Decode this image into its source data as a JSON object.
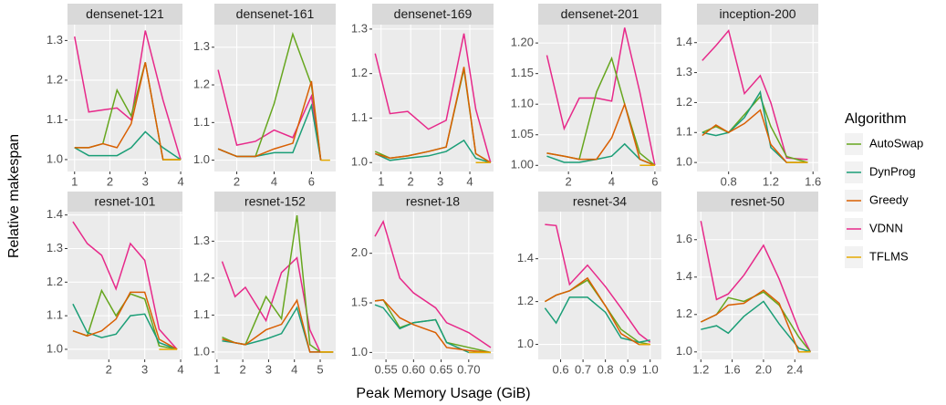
{
  "y_label": "Relative makespan",
  "x_label": "Peak Memory Usage (GiB)",
  "legend": {
    "title": "Algorithm",
    "series": [
      {
        "name": "AutoSwap",
        "color": "#66a61e"
      },
      {
        "name": "DynProg",
        "color": "#1b9e77"
      },
      {
        "name": "Greedy",
        "color": "#d95f02"
      },
      {
        "name": "VDNN",
        "color": "#e7298a"
      },
      {
        "name": "TFLMS",
        "color": "#e6ab02"
      }
    ]
  },
  "chart_data": [
    {
      "type": "line",
      "title": "densenet-121",
      "x": [
        1,
        1.4,
        1.8,
        2.2,
        2.6,
        3.0,
        3.5,
        4.0
      ],
      "xlim": [
        0.8,
        4.05
      ],
      "xticks": [
        1,
        2,
        3,
        4
      ],
      "ylim": [
        0.97,
        1.34
      ],
      "yticks": [
        {
          "value": 1,
          "label": "1.0"
        },
        1.1,
        1.2,
        1.3
      ],
      "series": [
        {
          "values": [
            1.03,
            1.03,
            1.04,
            1.175,
            1.11,
            1.245,
            1.0,
            1.0
          ]
        },
        {
          "values": [
            1.03,
            1.01,
            1.01,
            1.01,
            1.03,
            1.07,
            1.03,
            1.0
          ]
        },
        {
          "values": [
            1.03,
            1.03,
            1.04,
            1.03,
            1.09,
            1.245,
            1.0,
            1.0
          ]
        },
        {
          "values": [
            1.31,
            1.12,
            1.125,
            1.13,
            1.1,
            1.325,
            1.15,
            1.0
          ]
        },
        {
          "values": [
            null,
            null,
            null,
            null,
            null,
            null,
            1.0,
            1.0
          ]
        }
      ]
    },
    {
      "type": "line",
      "title": "densenet-161",
      "x": [
        1,
        2,
        3,
        4,
        5,
        6,
        6.5,
        7
      ],
      "xlim": [
        0.8,
        7.3
      ],
      "xticks": [
        2,
        4,
        6
      ],
      "ylim": [
        0.97,
        1.36
      ],
      "yticks": [
        {
          "value": 1,
          "label": "1.0"
        },
        1.1,
        1.2,
        1.3
      ],
      "series": [
        {
          "values": [
            1.03,
            1.01,
            1.01,
            1.15,
            1.335,
            1.2,
            1.0,
            null
          ]
        },
        {
          "values": [
            1.03,
            1.01,
            1.01,
            1.02,
            1.02,
            1.145,
            1.0,
            null
          ]
        },
        {
          "values": [
            1.03,
            1.01,
            1.01,
            1.03,
            1.045,
            1.21,
            1.0,
            null
          ]
        },
        {
          "values": [
            1.24,
            1.04,
            1.05,
            1.08,
            1.06,
            1.17,
            1.0,
            null
          ]
        },
        {
          "values": [
            null,
            null,
            null,
            null,
            null,
            null,
            1.0,
            1.0
          ]
        }
      ]
    },
    {
      "type": "line",
      "title": "densenet-169",
      "x": [
        0.8,
        1.3,
        1.9,
        2.6,
        3.2,
        3.8,
        4.2,
        4.7
      ],
      "xlim": [
        0.7,
        4.8
      ],
      "xticks": [
        1,
        2,
        3,
        4
      ],
      "ylim": [
        0.98,
        1.31
      ],
      "yticks": [
        {
          "value": 1,
          "label": "1.0"
        },
        1.1,
        1.2,
        1.3
      ],
      "series": [
        {
          "values": [
            1.025,
            1.01,
            1.015,
            1.025,
            1.035,
            1.21,
            1.02,
            1.0
          ]
        },
        {
          "values": [
            1.02,
            1.005,
            1.01,
            1.015,
            1.025,
            1.05,
            1.01,
            1.0
          ]
        },
        {
          "values": [
            1.02,
            1.01,
            1.015,
            1.025,
            1.035,
            1.215,
            1.02,
            1.0
          ]
        },
        {
          "values": [
            1.245,
            1.11,
            1.115,
            1.075,
            1.095,
            1.29,
            1.12,
            1.0
          ]
        },
        {
          "values": [
            null,
            null,
            null,
            null,
            null,
            null,
            1.0,
            1.0
          ]
        }
      ]
    },
    {
      "type": "line",
      "title": "densenet-201",
      "x": [
        1,
        1.8,
        2.5,
        3.3,
        4,
        4.6,
        5.3,
        6
      ],
      "xlim": [
        0.6,
        6.3
      ],
      "xticks": [
        2,
        4,
        6
      ],
      "ylim": [
        0.99,
        1.23
      ],
      "yticks": [
        {
          "value": 1,
          "label": "1.00"
        },
        {
          "value": 1.05,
          "label": "1.05"
        },
        {
          "value": 1.1,
          "label": "1.10"
        },
        {
          "value": 1.15,
          "label": "1.15"
        },
        {
          "value": 1.2,
          "label": "1.20"
        }
      ],
      "series": [
        {
          "values": [
            1.02,
            1.015,
            1.01,
            1.12,
            1.175,
            1.1,
            1.02,
            1.0
          ]
        },
        {
          "values": [
            1.015,
            1.005,
            1.005,
            1.01,
            1.015,
            1.035,
            1.01,
            1.0
          ]
        },
        {
          "values": [
            1.02,
            1.015,
            1.01,
            1.01,
            1.045,
            1.1,
            1.01,
            1.0
          ]
        },
        {
          "values": [
            1.18,
            1.06,
            1.11,
            1.11,
            1.105,
            1.225,
            1.12,
            1.0
          ]
        },
        {
          "values": [
            null,
            null,
            null,
            null,
            null,
            null,
            1.0,
            1.0
          ]
        }
      ]
    },
    {
      "type": "line",
      "title": "inception-200",
      "x": [
        0.55,
        0.68,
        0.8,
        0.95,
        1.1,
        1.2,
        1.35,
        1.55
      ],
      "xlim": [
        0.5,
        1.65
      ],
      "xticks": [
        0.8,
        1.2,
        1.6
      ],
      "ylim": [
        0.97,
        1.46
      ],
      "yticks": [
        {
          "value": 1,
          "label": "1.0"
        },
        1.1,
        1.2,
        1.3,
        1.4
      ],
      "series": [
        {
          "values": [
            1.1,
            1.12,
            1.1,
            1.16,
            1.22,
            1.12,
            1.02,
            1.0
          ]
        },
        {
          "values": [
            1.1,
            1.09,
            1.1,
            1.15,
            1.235,
            1.05,
            1.0,
            1.0
          ]
        },
        {
          "values": [
            1.09,
            1.125,
            1.1,
            1.13,
            1.175,
            1.06,
            1.0,
            1.0
          ]
        },
        {
          "values": [
            1.34,
            1.39,
            1.44,
            1.23,
            1.29,
            1.2,
            1.015,
            1.01
          ]
        },
        {
          "values": [
            null,
            null,
            null,
            null,
            null,
            null,
            1.0,
            1.0
          ]
        }
      ]
    },
    {
      "type": "line",
      "title": "resnet-101",
      "x": [
        1,
        1.4,
        1.8,
        2.2,
        2.6,
        3.0,
        3.4,
        3.9
      ],
      "xlim": [
        0.85,
        4.05
      ],
      "xticks": [
        2,
        3,
        4
      ],
      "ylim": [
        0.97,
        1.41
      ],
      "yticks": [
        {
          "value": 1,
          "label": "1.0"
        },
        1.1,
        1.2,
        1.3,
        1.4
      ],
      "series": [
        {
          "values": [
            1.055,
            1.04,
            1.175,
            1.1,
            1.165,
            1.15,
            1.01,
            1.0
          ]
        },
        {
          "values": [
            1.135,
            1.05,
            1.035,
            1.045,
            1.1,
            1.105,
            1.02,
            1.0
          ]
        },
        {
          "values": [
            1.055,
            1.04,
            1.055,
            1.09,
            1.17,
            1.17,
            1.03,
            1.0
          ]
        },
        {
          "values": [
            1.38,
            1.315,
            1.28,
            1.18,
            1.315,
            1.265,
            1.06,
            1.0
          ]
        },
        {
          "values": [
            null,
            null,
            null,
            null,
            null,
            null,
            1.0,
            1.0
          ]
        }
      ]
    },
    {
      "type": "line",
      "title": "resnet-152",
      "x": [
        1.2,
        1.7,
        2.1,
        2.9,
        3.5,
        4.1,
        4.6,
        5.0,
        5.5
      ],
      "xlim": [
        0.9,
        5.6
      ],
      "xticks": [
        1,
        2,
        3,
        4,
        5
      ],
      "ylim": [
        0.98,
        1.38
      ],
      "yticks": [
        {
          "value": 1,
          "label": "1.0"
        },
        1.1,
        1.2,
        1.3
      ],
      "series": [
        {
          "values": [
            1.04,
            1.025,
            1.02,
            1.15,
            1.09,
            1.37,
            1.02,
            1.0,
            1.0
          ]
        },
        {
          "values": [
            1.03,
            1.025,
            1.02,
            1.035,
            1.05,
            1.12,
            1.0,
            1.0,
            1.0
          ]
        },
        {
          "values": [
            1.035,
            1.025,
            1.02,
            1.06,
            1.075,
            1.14,
            1.0,
            1.0,
            1.0
          ]
        },
        {
          "values": [
            1.245,
            1.15,
            1.175,
            1.085,
            1.215,
            1.255,
            1.06,
            1.0,
            1.0
          ]
        },
        {
          "values": [
            null,
            null,
            null,
            null,
            null,
            null,
            null,
            1.0,
            1.0
          ]
        }
      ]
    },
    {
      "type": "line",
      "title": "resnet-18",
      "x": [
        0.53,
        0.545,
        0.575,
        0.6,
        0.64,
        0.66,
        0.7,
        0.74
      ],
      "xlim": [
        0.525,
        0.745
      ],
      "xticks": [
        0.55,
        {
          "value": 0.6,
          "label": "0.60"
        },
        0.65,
        {
          "value": 0.7,
          "label": "0.70"
        }
      ],
      "ylim": [
        0.93,
        2.42
      ],
      "yticks": [
        {
          "value": 1,
          "label": "1.0"
        },
        1.5,
        {
          "value": 2,
          "label": "2.0"
        }
      ],
      "series": [
        {
          "values": [
            1.52,
            1.53,
            1.25,
            1.3,
            1.33,
            1.1,
            1.05,
            1.0
          ]
        },
        {
          "values": [
            1.48,
            1.45,
            1.24,
            1.3,
            1.33,
            1.1,
            1.0,
            1.0
          ]
        },
        {
          "values": [
            1.52,
            1.53,
            1.35,
            1.28,
            1.2,
            1.05,
            1.02,
            1.0
          ]
        },
        {
          "values": [
            2.17,
            2.32,
            1.75,
            1.6,
            1.45,
            1.3,
            1.2,
            1.05
          ]
        },
        {
          "values": [
            null,
            null,
            null,
            null,
            null,
            null,
            1.0,
            1.0
          ]
        }
      ]
    },
    {
      "type": "line",
      "title": "resnet-34",
      "x": [
        0.53,
        0.58,
        0.64,
        0.72,
        0.8,
        0.87,
        0.95,
        1.0
      ],
      "xlim": [
        0.5,
        1.05
      ],
      "xticks": [
        0.6,
        0.7,
        0.8,
        0.9,
        {
          "value": 1,
          "label": "1.0"
        }
      ],
      "ylim": [
        0.93,
        1.62
      ],
      "yticks": [
        {
          "value": 1,
          "label": "1.0"
        },
        1.2,
        1.4
      ],
      "series": [
        {
          "values": [
            1.2,
            1.23,
            1.25,
            1.3,
            1.18,
            1.07,
            1.01,
            1.0
          ]
        },
        {
          "values": [
            1.17,
            1.1,
            1.22,
            1.22,
            1.15,
            1.03,
            1.01,
            1.02
          ]
        },
        {
          "values": [
            1.2,
            1.23,
            1.25,
            1.31,
            1.18,
            1.05,
            1.0,
            1.0
          ]
        },
        {
          "values": [
            1.56,
            1.555,
            1.28,
            1.37,
            1.27,
            1.17,
            1.05,
            1.01
          ]
        },
        {
          "values": [
            null,
            null,
            null,
            null,
            null,
            null,
            1.0,
            1.0
          ]
        }
      ]
    },
    {
      "type": "line",
      "title": "resnet-50",
      "x": [
        1.2,
        1.4,
        1.55,
        1.75,
        2.0,
        2.2,
        2.45,
        2.6
      ],
      "xlim": [
        1.15,
        2.7
      ],
      "xticks": [
        1.2,
        1.6,
        {
          "value": 2,
          "label": "2.0"
        },
        2.4
      ],
      "ylim": [
        0.96,
        1.75
      ],
      "yticks": [
        {
          "value": 1,
          "label": "1.0"
        },
        1.2,
        1.4,
        1.6
      ],
      "series": [
        {
          "values": [
            1.16,
            1.2,
            1.29,
            1.27,
            1.32,
            1.25,
            1.08,
            1.0
          ]
        },
        {
          "values": [
            1.12,
            1.14,
            1.1,
            1.19,
            1.27,
            1.15,
            1.02,
            1.0
          ]
        },
        {
          "values": [
            1.16,
            1.2,
            1.25,
            1.26,
            1.33,
            1.26,
            1.0,
            1.0
          ]
        },
        {
          "values": [
            1.7,
            1.28,
            1.31,
            1.41,
            1.57,
            1.39,
            1.12,
            1.0
          ]
        },
        {
          "values": [
            null,
            null,
            null,
            null,
            null,
            null,
            1.0,
            1.0
          ]
        }
      ]
    }
  ]
}
